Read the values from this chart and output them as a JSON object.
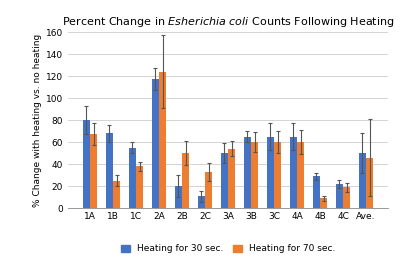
{
  "categories": [
    "1A",
    "1B",
    "1C",
    "2A",
    "2B",
    "2C",
    "3A",
    "3B",
    "3C",
    "4A",
    "4B",
    "4C",
    "Ave."
  ],
  "blue_values": [
    80,
    68,
    55,
    117,
    20,
    11,
    50,
    65,
    65,
    65,
    29,
    22,
    50
  ],
  "orange_values": [
    67,
    25,
    38,
    124,
    50,
    33,
    54,
    60,
    60,
    60,
    9,
    19,
    46
  ],
  "blue_errors": [
    13,
    8,
    5,
    10,
    10,
    5,
    9,
    5,
    12,
    12,
    3,
    4,
    18
  ],
  "orange_errors": [
    10,
    5,
    4,
    33,
    11,
    8,
    7,
    9,
    10,
    11,
    2,
    4,
    35
  ],
  "blue_color": "#4472C4",
  "orange_color": "#ED7D31",
  "ylabel": "% Change with heating vs. no heating",
  "ylim": [
    0,
    160
  ],
  "yticks": [
    0,
    20,
    40,
    60,
    80,
    100,
    120,
    140,
    160
  ],
  "legend_blue": "Heating for 30 sec.",
  "legend_orange": "Heating for 70 sec.",
  "bg_color": "#ffffff",
  "grid_color": "#cccccc",
  "bar_width": 0.32,
  "title_fontsize": 8,
  "tick_fontsize": 6.5,
  "ylabel_fontsize": 6.5,
  "legend_fontsize": 6.5
}
